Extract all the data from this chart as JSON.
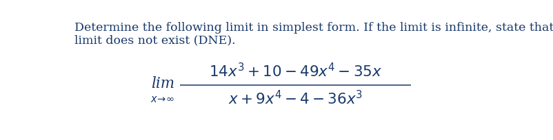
{
  "title_text_line1": "Determine the following limit in simplest form. If the limit is infinite, state that the",
  "title_text_line2": "limit does not exist (DNE).",
  "numerator": "$14x^3 + 10 - 49x^4 - 35x$",
  "denominator": "$x + 9x^4 - 4 - 36x^3$",
  "text_color": "#1a3a6b",
  "bg_color": "#ffffff",
  "title_fontsize": 12.5,
  "math_fontsize": 15.5,
  "lim_fontsize": 15.5,
  "sub_fontsize": 10.5
}
